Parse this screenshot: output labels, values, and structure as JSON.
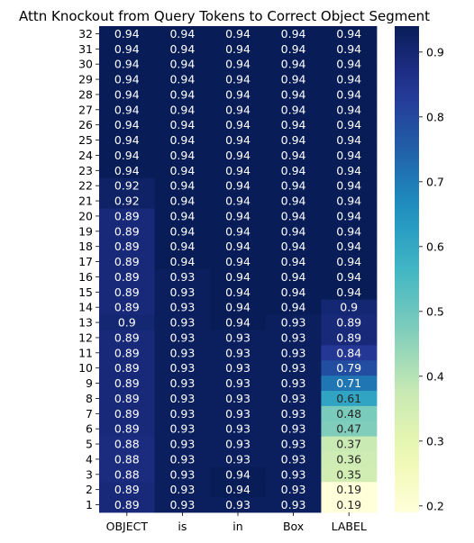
{
  "chart_data": {
    "type": "heatmap",
    "title": "Attn Knockout from Query Tokens to Correct Object Segment",
    "xlabel": "",
    "ylabel": "",
    "columns": [
      "OBJECT",
      "is",
      "in",
      "Box",
      "LABEL"
    ],
    "rows": [
      "32",
      "31",
      "30",
      "29",
      "28",
      "27",
      "26",
      "25",
      "24",
      "23",
      "22",
      "21",
      "20",
      "19",
      "18",
      "17",
      "16",
      "15",
      "14",
      "13",
      "12",
      "11",
      "10",
      "9",
      "8",
      "7",
      "6",
      "5",
      "4",
      "3",
      "2",
      "1"
    ],
    "values": [
      [
        0.94,
        0.94,
        0.94,
        0.94,
        0.94
      ],
      [
        0.94,
        0.94,
        0.94,
        0.94,
        0.94
      ],
      [
        0.94,
        0.94,
        0.94,
        0.94,
        0.94
      ],
      [
        0.94,
        0.94,
        0.94,
        0.94,
        0.94
      ],
      [
        0.94,
        0.94,
        0.94,
        0.94,
        0.94
      ],
      [
        0.94,
        0.94,
        0.94,
        0.94,
        0.94
      ],
      [
        0.94,
        0.94,
        0.94,
        0.94,
        0.94
      ],
      [
        0.94,
        0.94,
        0.94,
        0.94,
        0.94
      ],
      [
        0.94,
        0.94,
        0.94,
        0.94,
        0.94
      ],
      [
        0.94,
        0.94,
        0.94,
        0.94,
        0.94
      ],
      [
        0.92,
        0.94,
        0.94,
        0.94,
        0.94
      ],
      [
        0.92,
        0.94,
        0.94,
        0.94,
        0.94
      ],
      [
        0.89,
        0.94,
        0.94,
        0.94,
        0.94
      ],
      [
        0.89,
        0.94,
        0.94,
        0.94,
        0.94
      ],
      [
        0.89,
        0.94,
        0.94,
        0.94,
        0.94
      ],
      [
        0.89,
        0.94,
        0.94,
        0.94,
        0.94
      ],
      [
        0.89,
        0.93,
        0.94,
        0.94,
        0.94
      ],
      [
        0.89,
        0.93,
        0.94,
        0.94,
        0.94
      ],
      [
        0.89,
        0.93,
        0.94,
        0.94,
        0.9
      ],
      [
        0.9,
        0.93,
        0.94,
        0.93,
        0.89
      ],
      [
        0.89,
        0.93,
        0.93,
        0.93,
        0.89
      ],
      [
        0.89,
        0.93,
        0.93,
        0.93,
        0.84
      ],
      [
        0.89,
        0.93,
        0.93,
        0.93,
        0.79
      ],
      [
        0.89,
        0.93,
        0.93,
        0.93,
        0.71
      ],
      [
        0.89,
        0.93,
        0.93,
        0.93,
        0.61
      ],
      [
        0.89,
        0.93,
        0.93,
        0.93,
        0.48
      ],
      [
        0.89,
        0.93,
        0.93,
        0.93,
        0.47
      ],
      [
        0.88,
        0.93,
        0.93,
        0.93,
        0.37
      ],
      [
        0.88,
        0.93,
        0.93,
        0.93,
        0.36
      ],
      [
        0.88,
        0.93,
        0.94,
        0.93,
        0.35
      ],
      [
        0.89,
        0.93,
        0.94,
        0.93,
        0.19
      ],
      [
        0.89,
        0.93,
        0.93,
        0.93,
        0.19
      ]
    ],
    "colormap": "YlGnBu",
    "colorbar": {
      "range": [
        0.19,
        0.94
      ],
      "ticks": [
        0.2,
        0.3,
        0.4,
        0.5,
        0.6,
        0.7,
        0.8,
        0.9
      ]
    }
  }
}
